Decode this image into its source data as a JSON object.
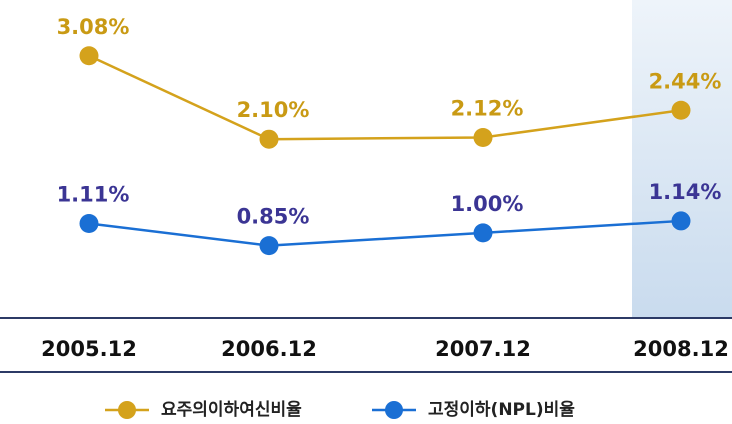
{
  "chart_data": {
    "type": "line",
    "categories": [
      "2005.12",
      "2006.12",
      "2007.12",
      "2008.12"
    ],
    "series": [
      {
        "name": "요주의이하여신비율",
        "color": "#d4a21c",
        "label_color": "#c99a14",
        "values": [
          3.08,
          2.1,
          2.12,
          2.44
        ],
        "value_labels": [
          "3.08%",
          "2.10%",
          "2.12%",
          "2.44%"
        ]
      },
      {
        "name": "고정이하(NPL)비율",
        "color": "#1a6fd4",
        "label_color": "#3b3594",
        "values": [
          1.11,
          0.85,
          1.0,
          1.14
        ],
        "value_labels": [
          "1.11%",
          "0.85%",
          "1.00%",
          "1.14%"
        ]
      }
    ],
    "ylim": [
      0,
      3.5
    ]
  }
}
